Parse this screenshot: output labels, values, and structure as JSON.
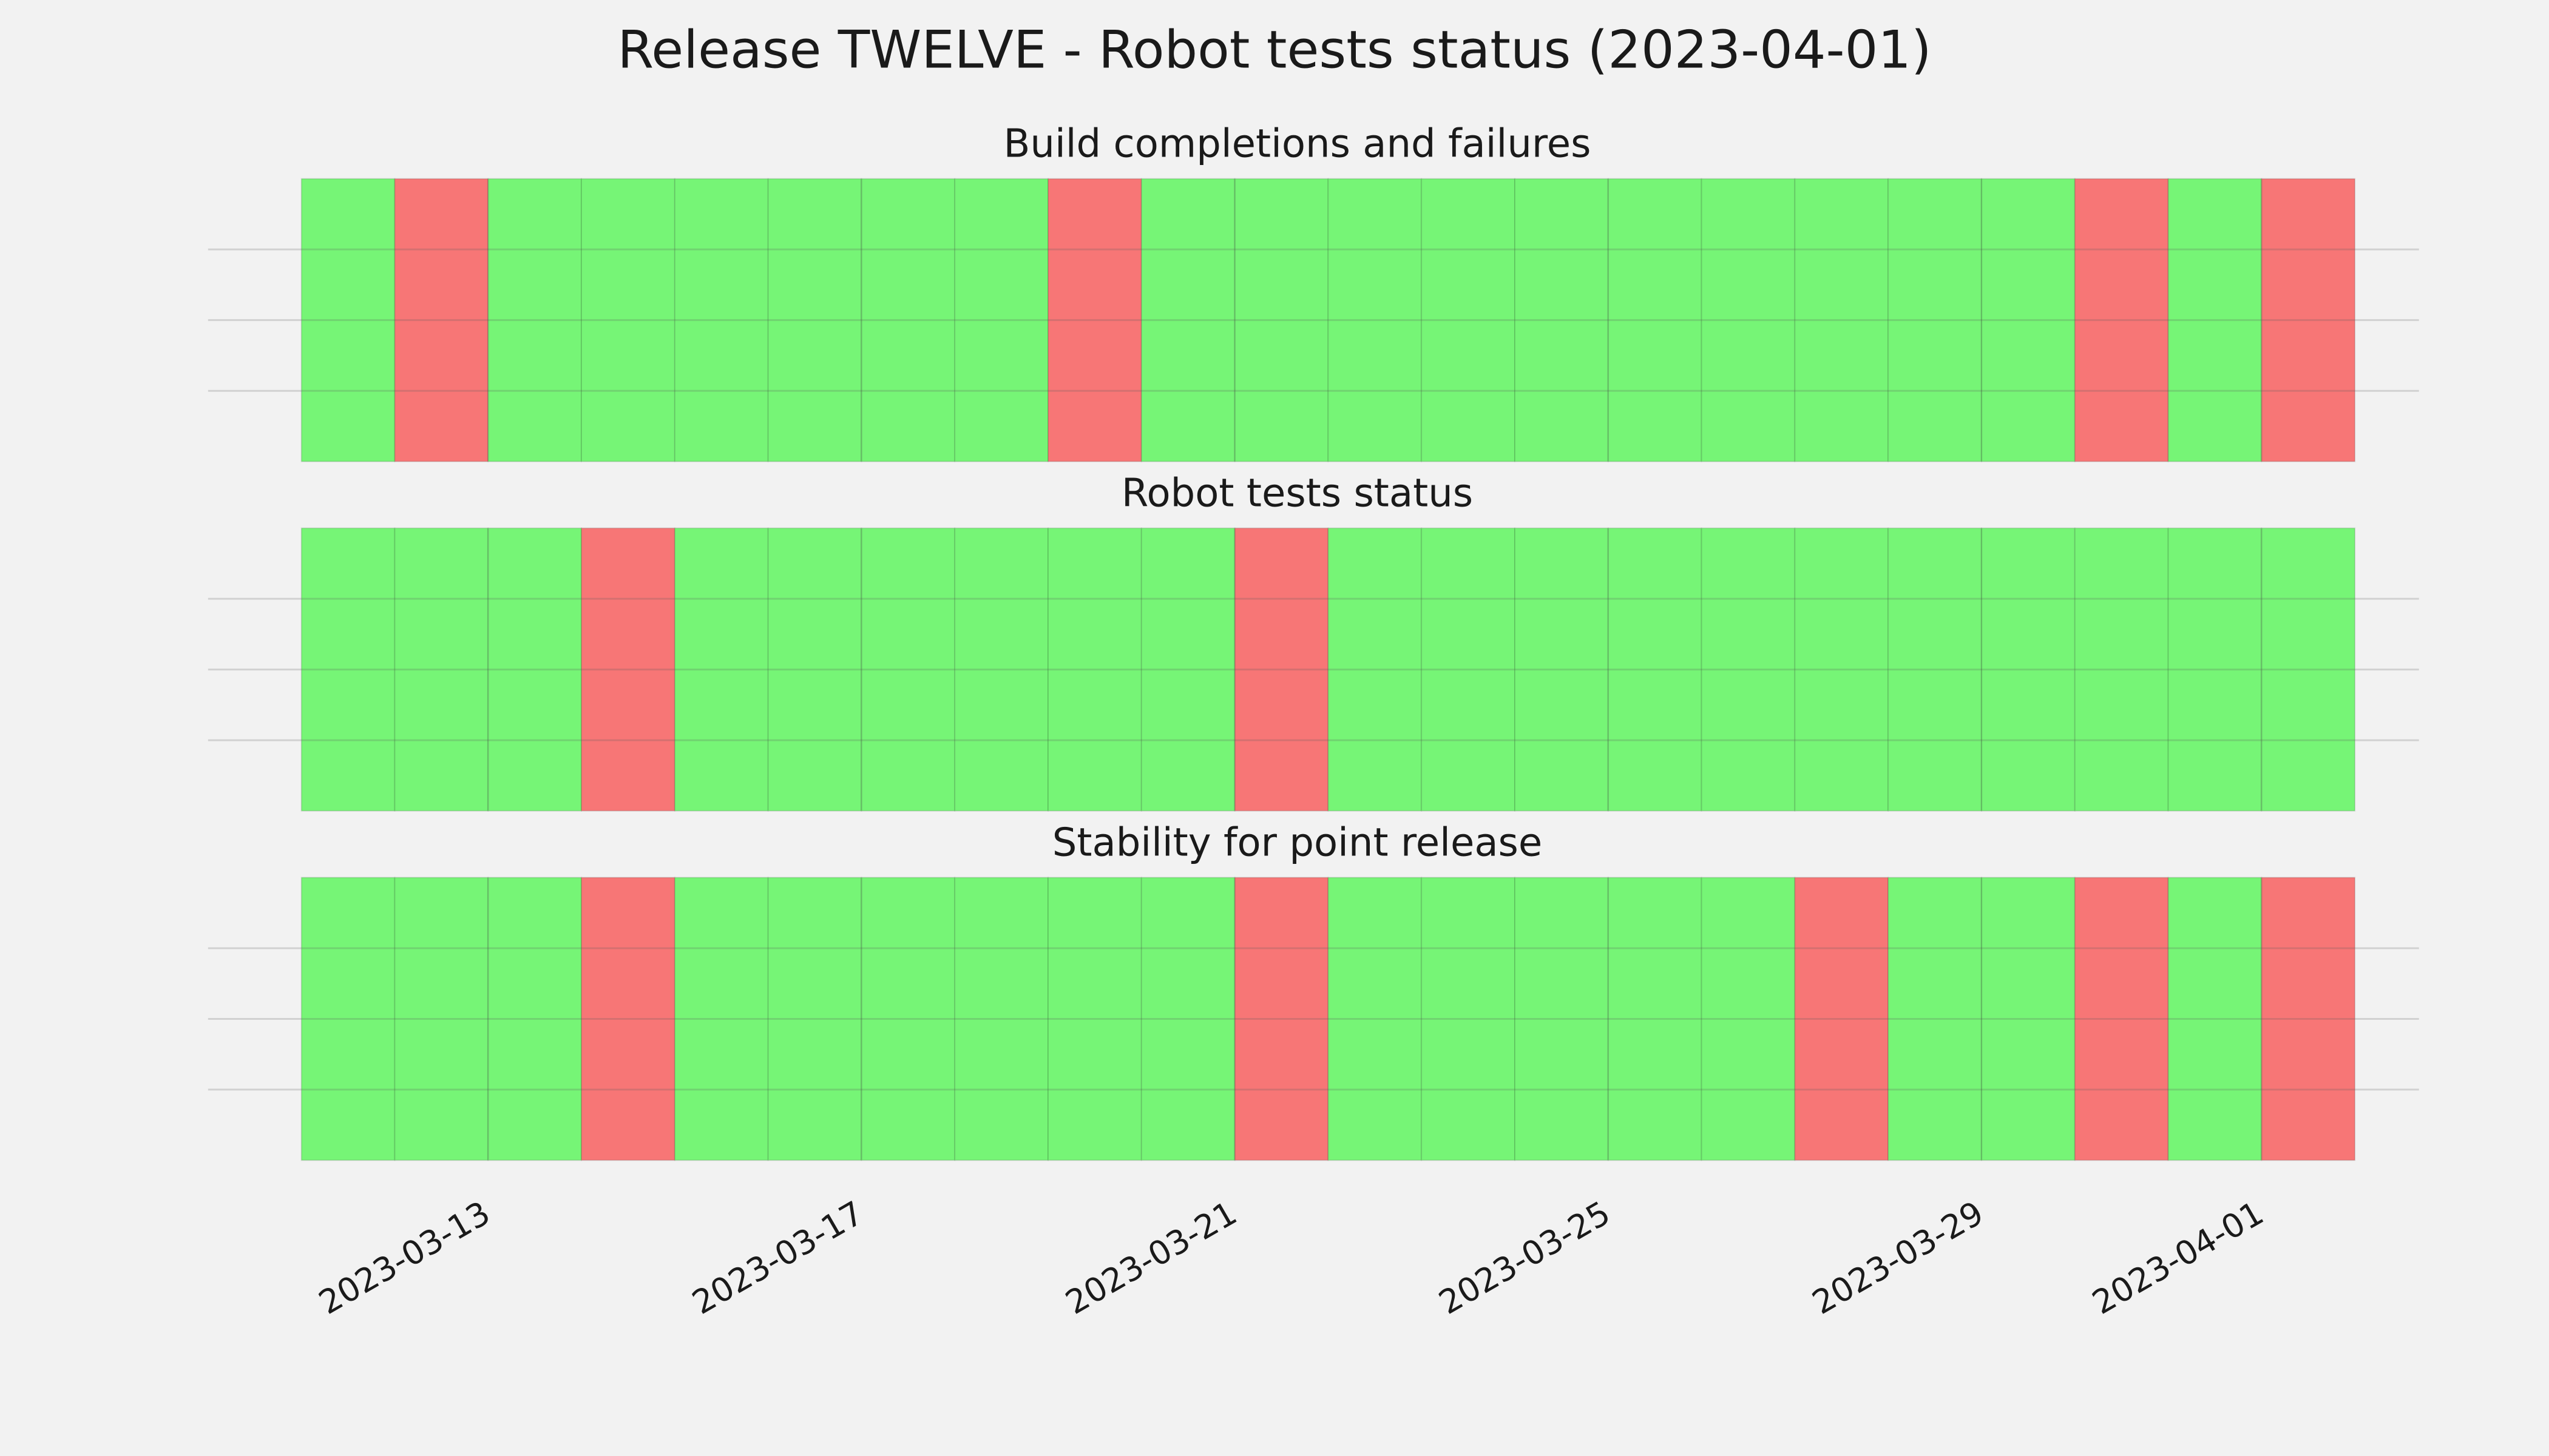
{
  "title": "Release TWELVE - Robot tests status (2023-04-01)",
  "chart_data": [
    {
      "type": "timeline",
      "title": "Build completions and failures",
      "x": [
        "2023-03-11",
        "2023-03-12",
        "2023-03-13",
        "2023-03-14",
        "2023-03-15",
        "2023-03-16",
        "2023-03-17",
        "2023-03-18",
        "2023-03-19",
        "2023-03-20",
        "2023-03-21",
        "2023-03-22",
        "2023-03-23",
        "2023-03-24",
        "2023-03-25",
        "2023-03-26",
        "2023-03-27",
        "2023-03-28",
        "2023-03-29",
        "2023-03-30",
        "2023-03-31",
        "2023-04-01"
      ],
      "values": [
        1,
        0,
        1,
        1,
        1,
        1,
        1,
        1,
        0,
        1,
        1,
        1,
        1,
        1,
        1,
        1,
        1,
        1,
        1,
        0,
        1,
        0
      ],
      "colors": [
        "#f77676",
        "#76f576"
      ],
      "xlim": [
        "2023-03-10",
        "2023-04-03"
      ],
      "ylim": [
        0,
        1
      ],
      "xticks": [
        "2023-03-13",
        "2023-03-17",
        "2023-03-21",
        "2023-03-25",
        "2023-03-29",
        "2023-04-01"
      ],
      "yticks": [
        0.25,
        0.5,
        0.75
      ],
      "grid": true,
      "show_xtick_labels": false
    },
    {
      "type": "timeline",
      "title": "Robot tests status",
      "x": [
        "2023-03-11",
        "2023-03-12",
        "2023-03-13",
        "2023-03-14",
        "2023-03-15",
        "2023-03-16",
        "2023-03-17",
        "2023-03-18",
        "2023-03-19",
        "2023-03-20",
        "2023-03-21",
        "2023-03-22",
        "2023-03-23",
        "2023-03-24",
        "2023-03-25",
        "2023-03-26",
        "2023-03-27",
        "2023-03-28",
        "2023-03-29",
        "2023-03-30",
        "2023-03-31",
        "2023-04-01"
      ],
      "values": [
        1,
        1,
        1,
        0,
        1,
        1,
        1,
        1,
        1,
        1,
        0,
        1,
        1,
        1,
        1,
        1,
        1,
        1,
        1,
        1,
        1,
        1
      ],
      "colors": [
        "#f77676",
        "#76f576"
      ],
      "xlim": [
        "2023-03-10",
        "2023-04-03"
      ],
      "ylim": [
        0,
        1
      ],
      "xticks": [
        "2023-03-13",
        "2023-03-17",
        "2023-03-21",
        "2023-03-25",
        "2023-03-29",
        "2023-04-01"
      ],
      "yticks": [
        0.25,
        0.5,
        0.75
      ],
      "grid": true,
      "show_xtick_labels": false
    },
    {
      "type": "timeline",
      "title": "Stability for point release",
      "x": [
        "2023-03-11",
        "2023-03-12",
        "2023-03-13",
        "2023-03-14",
        "2023-03-15",
        "2023-03-16",
        "2023-03-17",
        "2023-03-18",
        "2023-03-19",
        "2023-03-20",
        "2023-03-21",
        "2023-03-22",
        "2023-03-23",
        "2023-03-24",
        "2023-03-25",
        "2023-03-26",
        "2023-03-27",
        "2023-03-28",
        "2023-03-29",
        "2023-03-30",
        "2023-03-31",
        "2023-04-01"
      ],
      "values": [
        1,
        1,
        1,
        0,
        1,
        1,
        1,
        1,
        1,
        1,
        0,
        1,
        1,
        1,
        1,
        1,
        0,
        1,
        1,
        0,
        1,
        0
      ],
      "colors": [
        "#f77676",
        "#76f576"
      ],
      "xlim": [
        "2023-03-10",
        "2023-04-03"
      ],
      "ylim": [
        0,
        1
      ],
      "xticks": [
        "2023-03-13",
        "2023-03-17",
        "2023-03-21",
        "2023-03-25",
        "2023-03-29",
        "2023-04-01"
      ],
      "yticks": [
        0.25,
        0.5,
        0.75
      ],
      "grid": true,
      "show_xtick_labels": true
    }
  ]
}
